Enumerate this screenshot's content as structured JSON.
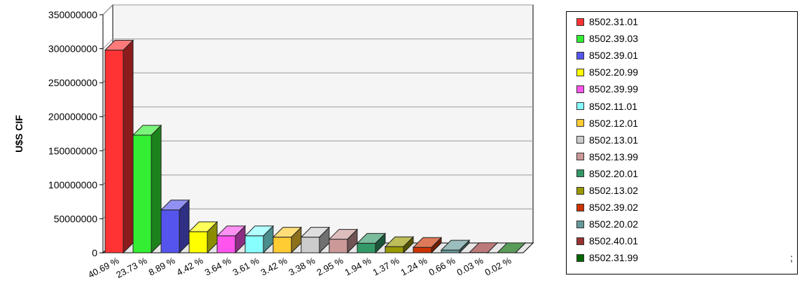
{
  "chart_data": {
    "type": "bar",
    "ylabel": "U$S CIF",
    "ylim": [
      0,
      350000000
    ],
    "y_ticks": [
      "0",
      "50000000",
      "100000000",
      "150000000",
      "200000000",
      "250000000",
      "300000000",
      "350000000"
    ],
    "grid": true,
    "legend_position": "right",
    "categories": [
      "8502.31.01",
      "8502.39.03",
      "8502.39.01",
      "8502.20.99",
      "8502.39.99",
      "8502.11.01",
      "8502.12.01",
      "8502.13.01",
      "8502.13.99",
      "8502.20.01",
      "8502.13.02",
      "8502.39.02",
      "8502.20.02",
      "8502.40.01",
      "8502.31.99"
    ],
    "values": [
      298000000,
      173000000,
      63000000,
      31000000,
      25000000,
      25000000,
      23000000,
      23000000,
      20000000,
      14000000,
      9000000,
      8000000,
      4000000,
      200000,
      100000
    ],
    "x_labels": [
      "40.69 %",
      "23.73 %",
      "8.89 %",
      "4.42 %",
      "3.64 %",
      "3.61 %",
      "3.42 %",
      "3.38 %",
      "2.95 %",
      "1.94 %",
      "1.37 %",
      "1.24 %",
      "0.66 %",
      "0.03 %",
      "0.02 %"
    ],
    "colors": [
      "#ff3333",
      "#33ee33",
      "#5555ee",
      "#ffff00",
      "#ff55ee",
      "#88ffff",
      "#ffcc33",
      "#cccccc",
      "#cc9999",
      "#339966",
      "#999900",
      "#cc3300",
      "#669999",
      "#993333",
      "#006600"
    ]
  },
  "legend": {
    "items": [
      {
        "label": "8502.31.01",
        "color": "#ff3333"
      },
      {
        "label": "8502.39.03",
        "color": "#33ee33"
      },
      {
        "label": "8502.39.01",
        "color": "#5555ee"
      },
      {
        "label": "8502.20.99",
        "color": "#ffff00"
      },
      {
        "label": "8502.39.99",
        "color": "#ff55ee"
      },
      {
        "label": "8502.11.01",
        "color": "#88ffff"
      },
      {
        "label": "8502.12.01",
        "color": "#ffcc33"
      },
      {
        "label": "8502.13.01",
        "color": "#cccccc"
      },
      {
        "label": "8502.13.99",
        "color": "#cc9999"
      },
      {
        "label": "8502.20.01",
        "color": "#339966"
      },
      {
        "label": "8502.13.02",
        "color": "#999900"
      },
      {
        "label": "8502.39.02",
        "color": "#cc3300"
      },
      {
        "label": "8502.20.02",
        "color": "#669999"
      },
      {
        "label": "8502.40.01",
        "color": "#993333"
      },
      {
        "label": "8502.31.99",
        "color": "#006600"
      }
    ]
  },
  "trailing_mark": ";"
}
